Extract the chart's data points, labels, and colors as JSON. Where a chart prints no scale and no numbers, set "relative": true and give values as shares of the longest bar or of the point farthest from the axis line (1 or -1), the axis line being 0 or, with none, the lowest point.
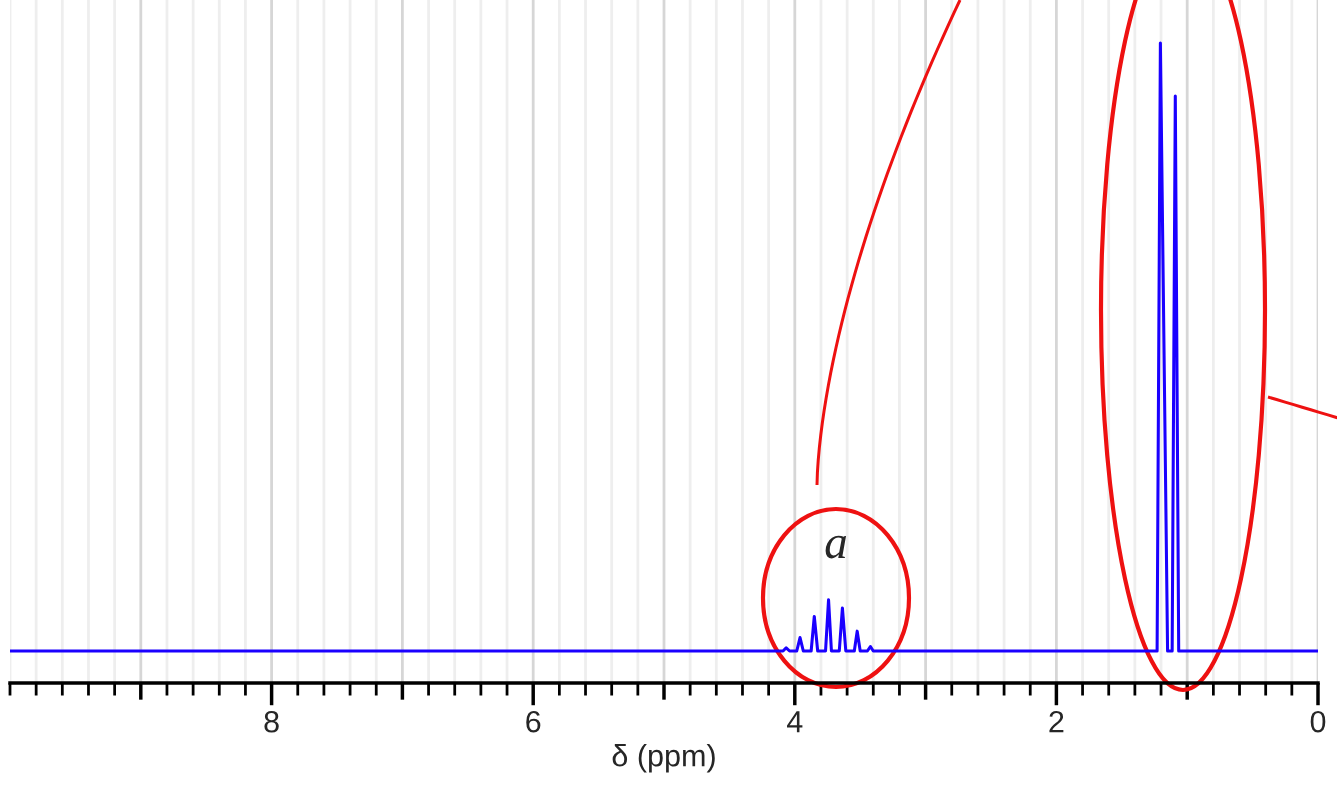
{
  "chart_data": {
    "type": "line",
    "relative": true,
    "xlabel": "δ (ppm)",
    "xlim": [
      10,
      0
    ],
    "xticks": [
      {
        "value": 9,
        "label": null
      },
      8,
      {
        "value": 7,
        "label": null
      },
      6,
      {
        "value": 5,
        "label": null
      },
      4,
      {
        "value": 3,
        "label": null
      },
      2,
      {
        "value": 1,
        "label": null
      },
      0
    ],
    "grid": "x",
    "tick_labels": "x",
    "marker": "none",
    "line_style": "solid",
    "annotations": [
      "a"
    ],
    "series": [
      {
        "color": "#1a00ff",
        "x": [
          10,
          4.09,
          4.066,
          4.04,
          3.985,
          3.96,
          3.935,
          3.875,
          3.851,
          3.825,
          3.765,
          3.742,
          3.72,
          3.66,
          3.636,
          3.61,
          3.545,
          3.523,
          3.5,
          3.445,
          3.422,
          3.4,
          1.23,
          1.205,
          1.15,
          1.115,
          1.091,
          1.065,
          0
        ],
        "values": [
          0.05,
          0.05,
          0.055,
          0.05,
          0.05,
          0.071,
          0.05,
          0.05,
          0.104,
          0.05,
          0.05,
          0.13,
          0.05,
          0.05,
          0.117,
          0.05,
          0.05,
          0.081,
          0.05,
          0.05,
          0.057,
          0.05,
          0.05,
          1,
          0.05,
          0.05,
          0.917,
          0.05,
          0.05
        ]
      }
    ]
  }
}
